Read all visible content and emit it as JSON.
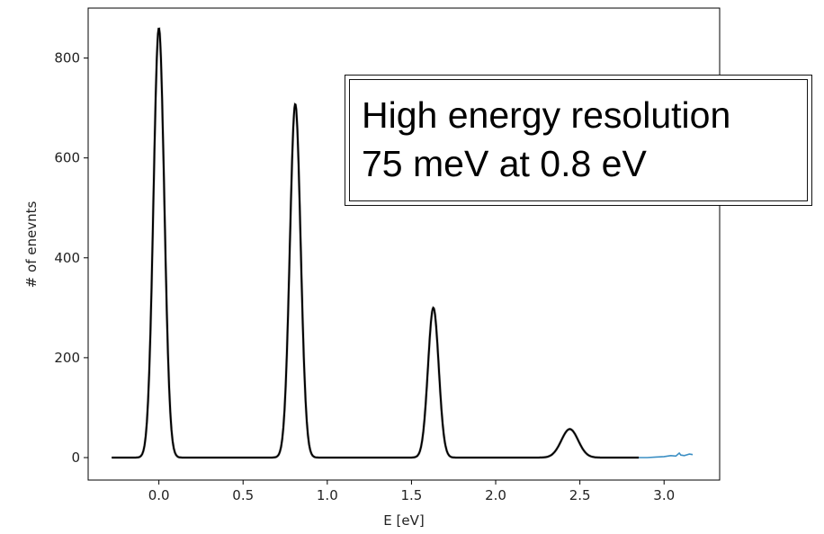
{
  "chart_data": {
    "type": "line",
    "title": "",
    "xlabel": "E [eV]",
    "ylabel": "# of enevnts",
    "xlim": [
      -0.42,
      3.33
    ],
    "ylim": [
      -45,
      900
    ],
    "xticks": [
      0.0,
      0.5,
      1.0,
      1.5,
      2.0,
      2.5,
      3.0
    ],
    "xtick_labels": [
      "0.0",
      "0.5",
      "1.0",
      "1.5",
      "2.0",
      "2.5",
      "3.0"
    ],
    "yticks": [
      0,
      200,
      400,
      600,
      800
    ],
    "ytick_labels": [
      "0",
      "200",
      "400",
      "600",
      "800"
    ],
    "grid": false,
    "legend": "none",
    "series": [
      {
        "color": "#000000",
        "x_range": [
          -0.28,
          2.85
        ],
        "peaks": [
          {
            "center": 0.0,
            "height": 860,
            "sigma": 0.032
          },
          {
            "center": 0.81,
            "height": 708,
            "sigma": 0.032
          },
          {
            "center": 1.63,
            "height": 300,
            "sigma": 0.032
          },
          {
            "center": 2.44,
            "height": 57,
            "sigma": 0.05
          }
        ]
      },
      {
        "color": "#3b8fc4",
        "x": [
          2.85,
          2.9,
          2.95,
          3.0,
          3.04,
          3.07,
          3.09,
          3.1,
          3.12,
          3.15,
          3.17
        ],
        "y": [
          0,
          0,
          1,
          2,
          4,
          3,
          9,
          5,
          4,
          7,
          6
        ]
      }
    ],
    "annotations": [
      "High energy resolution",
      "75 meV at 0.8 eV"
    ]
  }
}
